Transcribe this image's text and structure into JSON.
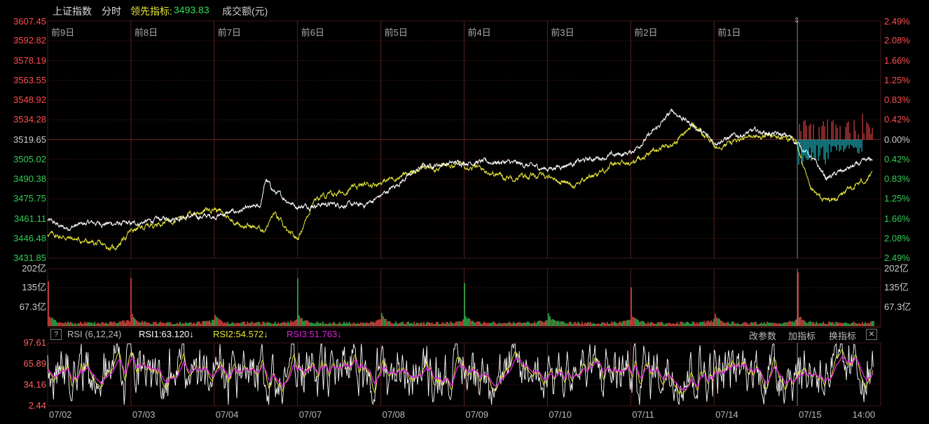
{
  "header": {
    "index_name": "上证指数",
    "mode": "分时",
    "leading_label": "领先指标:",
    "leading_value": "3493.83",
    "volume_label": "成交额(元)"
  },
  "price_axis": {
    "left_labels": [
      "3607.45",
      "3592.82",
      "3578.19",
      "3563.55",
      "3548.92",
      "3534.28",
      "3519.65",
      "3505.02",
      "3490.38",
      "3475.75",
      "3461.11",
      "3446.48",
      "3431.85"
    ],
    "right_labels": [
      "2.49%",
      "2.08%",
      "1.66%",
      "1.25%",
      "0.83%",
      "0.42%",
      "0.00%",
      "0.42%",
      "0.83%",
      "1.25%",
      "1.66%",
      "2.08%",
      "2.49%"
    ],
    "ylim": [
      3431.85,
      3607.45
    ],
    "base": 3519.65
  },
  "day_labels": [
    "前9日",
    "前8日",
    "前7日",
    "前6日",
    "前5日",
    "前4日",
    "前3日",
    "前2日",
    "前1日"
  ],
  "volume_axis": {
    "labels": [
      "202亿",
      "135亿",
      "67.3亿"
    ]
  },
  "rsi": {
    "help": "?",
    "params": "RSI (6,12,24)",
    "rsi1": "RSI1:63.120↓",
    "rsi2": "RSI2:54.572↓",
    "rsi3": "RSI3:51.763↓",
    "axis_labels": [
      "97.61",
      "65.89",
      "34.16",
      "2.44"
    ],
    "buttons": {
      "change_params": "改参数",
      "add_indicator": "加指标",
      "switch_indicator": "换指标",
      "close": "✕"
    }
  },
  "x_labels": [
    "07/02",
    "07/03",
    "07/04",
    "07/07",
    "07/08",
    "07/09",
    "07/10",
    "07/11",
    "07/14",
    "07/15",
    "14:00"
  ],
  "colors": {
    "up": "#ff4d4d",
    "down": "#33cc55",
    "price_line": "#ffffff",
    "leading_line": "#e6e63c",
    "rsi1": "#ffffff",
    "rsi2": "#e6e63c",
    "rsi3": "#dd22dd",
    "cyan": "#22dde6",
    "grid": "#3a1414"
  },
  "chart_data": {
    "type": "line",
    "series": [
      {
        "name": "上证指数",
        "anchors": [
          [
            0,
            3460
          ],
          [
            0.2,
            3454
          ],
          [
            0.5,
            3458
          ],
          [
            1.0,
            3457
          ],
          [
            1.5,
            3462
          ],
          [
            2.0,
            3463
          ],
          [
            2.55,
            3470
          ],
          [
            2.62,
            3490
          ],
          [
            2.72,
            3481
          ],
          [
            3.0,
            3470
          ],
          [
            3.3,
            3472
          ],
          [
            3.8,
            3471
          ],
          [
            4.0,
            3478
          ],
          [
            4.5,
            3500
          ],
          [
            5.0,
            3503
          ],
          [
            5.5,
            3503
          ],
          [
            6.0,
            3498
          ],
          [
            6.5,
            3505
          ],
          [
            7.0,
            3510
          ],
          [
            7.3,
            3527
          ],
          [
            7.5,
            3541
          ],
          [
            7.75,
            3530
          ],
          [
            8.0,
            3518
          ],
          [
            8.5,
            3526
          ],
          [
            8.9,
            3522
          ],
          [
            9.0,
            3517
          ],
          [
            9.15,
            3508
          ],
          [
            9.35,
            3491
          ],
          [
            9.6,
            3498
          ],
          [
            9.9,
            3505
          ]
        ]
      },
      {
        "name": "领先指标",
        "anchors": [
          [
            0,
            3450
          ],
          [
            0.4,
            3445
          ],
          [
            0.8,
            3439
          ],
          [
            1.0,
            3452
          ],
          [
            1.5,
            3461
          ],
          [
            2.0,
            3469
          ],
          [
            2.3,
            3457
          ],
          [
            2.6,
            3453
          ],
          [
            2.72,
            3465
          ],
          [
            2.9,
            3449
          ],
          [
            3.0,
            3446
          ],
          [
            3.2,
            3476
          ],
          [
            3.5,
            3480
          ],
          [
            3.8,
            3486
          ],
          [
            4.0,
            3488
          ],
          [
            4.5,
            3498
          ],
          [
            5.0,
            3502
          ],
          [
            5.5,
            3492
          ],
          [
            6.0,
            3493
          ],
          [
            6.3,
            3486
          ],
          [
            6.8,
            3501
          ],
          [
            7.0,
            3502
          ],
          [
            7.3,
            3513
          ],
          [
            7.5,
            3516
          ],
          [
            7.75,
            3531
          ],
          [
            8.0,
            3515
          ],
          [
            8.5,
            3522
          ],
          [
            8.9,
            3521
          ],
          [
            9.0,
            3516
          ],
          [
            9.15,
            3482
          ],
          [
            9.3,
            3475
          ],
          [
            9.45,
            3475
          ],
          [
            9.7,
            3486
          ],
          [
            9.9,
            3493
          ]
        ]
      }
    ],
    "volume_ylim": [
      0,
      202
    ],
    "rsi_ylim": [
      2.44,
      97.61
    ]
  }
}
